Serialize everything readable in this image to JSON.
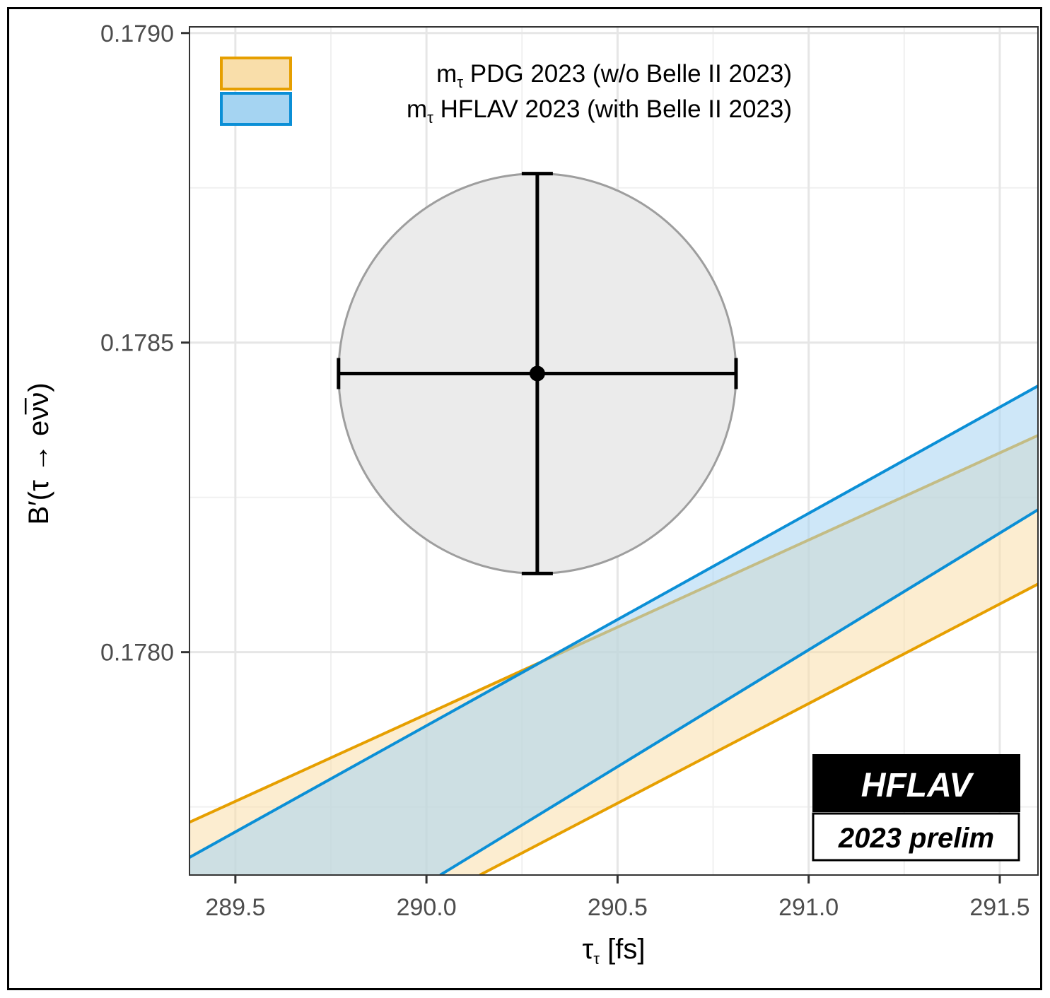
{
  "chart_data": {
    "type": "line",
    "xlabel": {
      "main": "τ",
      "sub": "τ",
      "suffix": " [fs]"
    },
    "ylabel": "B′(τ → eν̅ν)",
    "xlim": [
      289.38,
      291.6
    ],
    "ylim": [
      0.17764,
      0.17901
    ],
    "x_ticks": [
      {
        "value": 289.5,
        "label": "289.5"
      },
      {
        "value": 290.0,
        "label": "290.0"
      },
      {
        "value": 290.5,
        "label": "290.5"
      },
      {
        "value": 291.0,
        "label": "291.0"
      },
      {
        "value": 291.5,
        "label": "291.5"
      }
    ],
    "y_ticks": [
      {
        "value": 0.178,
        "label": "0.1780"
      },
      {
        "value": 0.1785,
        "label": "0.1785"
      },
      {
        "value": 0.179,
        "label": "0.1790"
      }
    ],
    "grid": true,
    "measurement": {
      "x": 290.29,
      "y": 0.17845,
      "x_err": 0.52,
      "y_err": 0.000323,
      "ellipse_color": "#9e9e9e",
      "ellipse_fill": "#ebebeb"
    },
    "bands": [
      {
        "name": "PDG 2023 (w/o Belle II 2023)",
        "legend_prefix": "m",
        "legend_sub": "τ",
        "edge_color": "#e69f00",
        "fill_color": "#f9deaa",
        "fill_opacity": 0.55,
        "x": [
          289.93,
          291.6
        ],
        "lower": [
          0.17764,
          0.17811
        ],
        "upper": [
          0.17764,
          0.17835
        ]
      },
      {
        "name": "HFLAV 2023 (with Belle II 2023)",
        "legend_prefix": "m",
        "legend_sub": "τ",
        "edge_color": "#0b8fd6",
        "fill_color": "#a5d4f2",
        "fill_opacity": 0.55,
        "x": [
          289.88,
          291.6
        ],
        "lower": [
          0.17764,
          0.17823
        ],
        "upper": [
          0.17764,
          0.17843
        ]
      }
    ],
    "legend_position": "top-left",
    "badge": {
      "main": "HFLAV",
      "sub": "2023 prelim"
    }
  }
}
